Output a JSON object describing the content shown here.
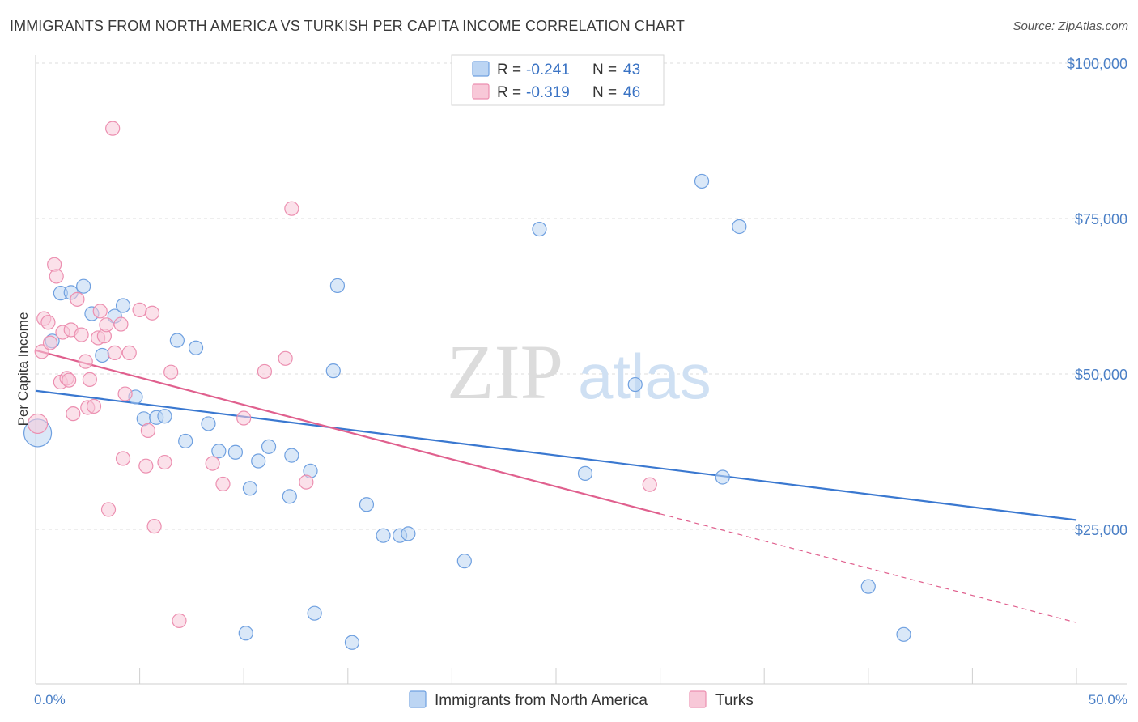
{
  "header": {
    "title": "IMMIGRANTS FROM NORTH AMERICA VS TURKISH PER CAPITA INCOME CORRELATION CHART",
    "source": "Source: ZipAtlas.com"
  },
  "watermark": {
    "zip": "ZIP",
    "atlas": "atlas"
  },
  "chart_data": {
    "type": "scatter",
    "title": "IMMIGRANTS FROM NORTH AMERICA VS TURKISH PER CAPITA INCOME CORRELATION CHART",
    "ylabel": "Per Capita Income",
    "xlim": [
      0,
      50
    ],
    "ylim": [
      0,
      105000
    ],
    "x_tick_labels": {
      "min": "0.0%",
      "max": "50.0%"
    },
    "y_ticks": [
      {
        "value": 25000,
        "label": "$25,000"
      },
      {
        "value": 50000,
        "label": "$50,000"
      },
      {
        "value": 75000,
        "label": "$75,000"
      },
      {
        "value": 100000,
        "label": "$100,000"
      }
    ],
    "grid": "horizontal dashed",
    "legend_position": "top-center",
    "series": [
      {
        "name": "Immigrants from North America",
        "color": "#6fa0e0",
        "fill": "#bcd5f3",
        "line_color": "#3a78d0",
        "R": "-0.241",
        "N": "43",
        "trend": {
          "x": [
            0,
            50
          ],
          "y": [
            47300,
            26500
          ]
        },
        "points": [
          [
            0.1,
            40500
          ],
          [
            0.8,
            55300
          ],
          [
            1.2,
            63000
          ],
          [
            1.7,
            63100
          ],
          [
            2.3,
            64100
          ],
          [
            2.7,
            59700
          ],
          [
            3.2,
            53000
          ],
          [
            3.8,
            59300
          ],
          [
            4.2,
            61000
          ],
          [
            4.8,
            46300
          ],
          [
            5.2,
            42800
          ],
          [
            5.8,
            43000
          ],
          [
            6.2,
            43200
          ],
          [
            6.8,
            55400
          ],
          [
            7.2,
            39200
          ],
          [
            7.7,
            54200
          ],
          [
            8.3,
            42000
          ],
          [
            8.8,
            37600
          ],
          [
            9.6,
            37400
          ],
          [
            10.1,
            8300
          ],
          [
            10.3,
            31600
          ],
          [
            10.7,
            36000
          ],
          [
            11.2,
            38300
          ],
          [
            12.2,
            30300
          ],
          [
            12.3,
            36900
          ],
          [
            13.2,
            34400
          ],
          [
            13.4,
            11500
          ],
          [
            14.5,
            64200
          ],
          [
            14.3,
            50500
          ],
          [
            15.2,
            6800
          ],
          [
            15.9,
            29000
          ],
          [
            16.7,
            24000
          ],
          [
            17.5,
            24000
          ],
          [
            17.9,
            24300
          ],
          [
            20.6,
            19900
          ],
          [
            24.2,
            73300
          ],
          [
            26.4,
            34000
          ],
          [
            28.8,
            48300
          ],
          [
            32.0,
            81000
          ],
          [
            33.0,
            33400
          ],
          [
            33.8,
            73700
          ],
          [
            40.0,
            15800
          ],
          [
            41.7,
            8100
          ]
        ]
      },
      {
        "name": "Turks",
        "color": "#ec8fb0",
        "fill": "#f8c8d8",
        "line_color": "#e0608e",
        "R": "-0.319",
        "N": "46",
        "trend": {
          "x": [
            0,
            30
          ],
          "y": [
            53800,
            27500
          ]
        },
        "trend_extension": {
          "x": [
            30,
            50
          ],
          "y": [
            27500,
            10000
          ]
        },
        "points": [
          [
            0.1,
            42000
          ],
          [
            0.3,
            53600
          ],
          [
            0.4,
            58900
          ],
          [
            0.6,
            58300
          ],
          [
            0.7,
            55000
          ],
          [
            0.9,
            67600
          ],
          [
            1.0,
            65700
          ],
          [
            1.2,
            48700
          ],
          [
            1.3,
            56700
          ],
          [
            1.5,
            49300
          ],
          [
            1.6,
            49000
          ],
          [
            1.7,
            57100
          ],
          [
            1.8,
            43600
          ],
          [
            2.0,
            62000
          ],
          [
            2.2,
            56300
          ],
          [
            2.4,
            52000
          ],
          [
            2.5,
            44600
          ],
          [
            2.6,
            49100
          ],
          [
            2.8,
            44800
          ],
          [
            3.0,
            55800
          ],
          [
            3.1,
            60100
          ],
          [
            3.3,
            56100
          ],
          [
            3.4,
            57900
          ],
          [
            3.5,
            28200
          ],
          [
            3.7,
            89500
          ],
          [
            3.8,
            53400
          ],
          [
            4.1,
            58000
          ],
          [
            4.2,
            36400
          ],
          [
            4.3,
            46800
          ],
          [
            4.5,
            53400
          ],
          [
            5.0,
            60300
          ],
          [
            5.3,
            35200
          ],
          [
            5.4,
            40900
          ],
          [
            5.6,
            59800
          ],
          [
            5.7,
            25500
          ],
          [
            6.2,
            35800
          ],
          [
            6.5,
            50300
          ],
          [
            6.9,
            10300
          ],
          [
            8.5,
            35600
          ],
          [
            9.0,
            32300
          ],
          [
            10.0,
            42900
          ],
          [
            11.0,
            50400
          ],
          [
            12.0,
            52500
          ],
          [
            12.3,
            76600
          ],
          [
            13.0,
            32600
          ],
          [
            29.5,
            32200
          ]
        ]
      }
    ]
  },
  "legend": {
    "r_label": "R =",
    "n_label": "N ="
  }
}
